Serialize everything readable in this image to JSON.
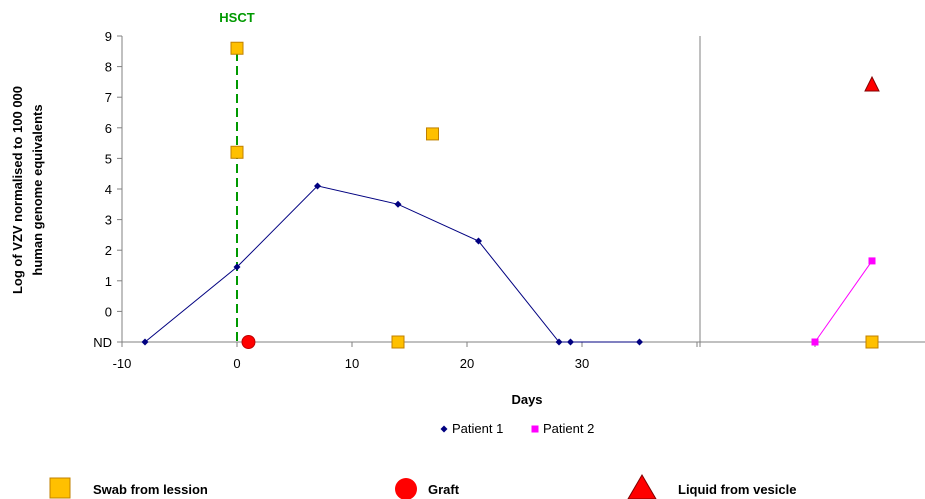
{
  "chart_data": {
    "type": "line",
    "xlabel": "Days",
    "ylabel_lines": [
      "Log of VZV normalised to 100 000",
      "human genome equivalents"
    ],
    "xlim": [
      -10,
      35
    ],
    "x_ticks": [
      "-10",
      "0",
      "10",
      "20",
      "30"
    ],
    "ylim": [
      -1,
      9
    ],
    "y_ticks": [
      "ND",
      "0",
      "1",
      "2",
      "3",
      "4",
      "5",
      "6",
      "7",
      "8",
      "9"
    ],
    "series": [
      {
        "name": "Patient 1",
        "color": "#000080",
        "marker": "diamond",
        "points": [
          [
            -8,
            -1
          ],
          [
            0,
            1.45
          ],
          [
            7,
            4.1
          ],
          [
            14,
            3.5
          ],
          [
            21,
            2.3
          ],
          [
            28,
            -1
          ],
          [
            29,
            -1
          ],
          [
            35,
            -1
          ]
        ]
      },
      {
        "name": "Patient 2",
        "color": "#ff00ff",
        "marker": "square",
        "panel": "right",
        "points": [
          [
            1,
            -1
          ],
          [
            2,
            1.65
          ]
        ]
      }
    ],
    "annotations": {
      "event_label": "HSCT",
      "event_x": 0,
      "event_color": "#009900"
    },
    "sample_markers": [
      {
        "type": "swab",
        "panel": "left",
        "x": 0,
        "y": 8.6
      },
      {
        "type": "swab",
        "panel": "left",
        "x": 0,
        "y": 5.2
      },
      {
        "type": "swab",
        "panel": "left",
        "x": 17,
        "y": 5.8
      },
      {
        "type": "swab",
        "panel": "left",
        "x": 14,
        "y": -1
      },
      {
        "type": "graft",
        "panel": "left",
        "x": 1,
        "y": -1
      },
      {
        "type": "swab",
        "panel": "right",
        "x": 2,
        "y": -1
      },
      {
        "type": "vesicle",
        "panel": "right",
        "x": 2,
        "y": 7.4
      }
    ],
    "legend": [
      "Patient 1",
      "Patient 2"
    ],
    "legend_placement": "bottom-center"
  },
  "sample_key": [
    {
      "type": "swab",
      "label": "Swab from lession",
      "color": "#ffc000"
    },
    {
      "type": "graft",
      "label": "Graft",
      "color": "#ff0000"
    },
    {
      "type": "vesicle",
      "label": "Liquid from vesicle",
      "color": "#ff0000"
    }
  ]
}
